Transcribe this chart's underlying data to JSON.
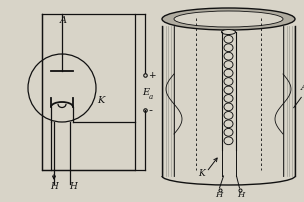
{
  "bg_color": "#d8d4c8",
  "line_color": "#111111",
  "fig_width": 3.04,
  "fig_height": 2.02,
  "dpi": 100,
  "labels": {
    "A_circuit": "A",
    "K_circuit": "K",
    "H1": "H",
    "H2": "H",
    "Ea": "E",
    "a_sub": "a",
    "plus": "+",
    "minus": "-",
    "A_tube": "A",
    "K_tube": "K",
    "H_tube1": "H",
    "H_tube2": "H"
  }
}
